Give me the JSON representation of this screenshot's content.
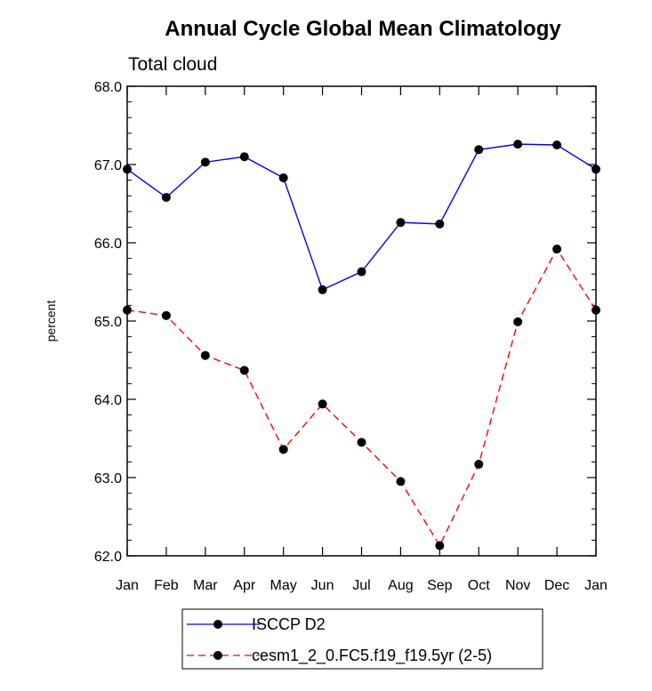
{
  "chart_data": {
    "type": "line",
    "title": "Annual Cycle Global Mean Climatology",
    "subtitle": "Total cloud",
    "xlabel": "",
    "ylabel": "percent",
    "categories": [
      "Jan",
      "Feb",
      "Mar",
      "Apr",
      "May",
      "Jun",
      "Jul",
      "Aug",
      "Sep",
      "Oct",
      "Nov",
      "Dec",
      "Jan"
    ],
    "ylim": [
      62.0,
      68.0
    ],
    "yticks": [
      "62.0",
      "63.0",
      "64.0",
      "65.0",
      "66.0",
      "67.0",
      "68.0"
    ],
    "grid": false,
    "legend_position": "bottom-center",
    "series": [
      {
        "name": "ISCCP D2",
        "color": "#0000ff",
        "style": "solid",
        "values": [
          66.94,
          66.58,
          67.03,
          67.1,
          66.83,
          65.4,
          65.63,
          66.26,
          66.24,
          67.19,
          67.26,
          67.25,
          66.94
        ]
      },
      {
        "name": "cesm1_2_0.FC5.f19_f19.5yr (2-5)",
        "color": "#ff0000",
        "style": "dashed",
        "values": [
          65.14,
          65.07,
          64.56,
          64.37,
          63.36,
          63.94,
          63.45,
          62.95,
          62.13,
          63.17,
          64.99,
          65.92,
          65.14
        ]
      }
    ]
  }
}
